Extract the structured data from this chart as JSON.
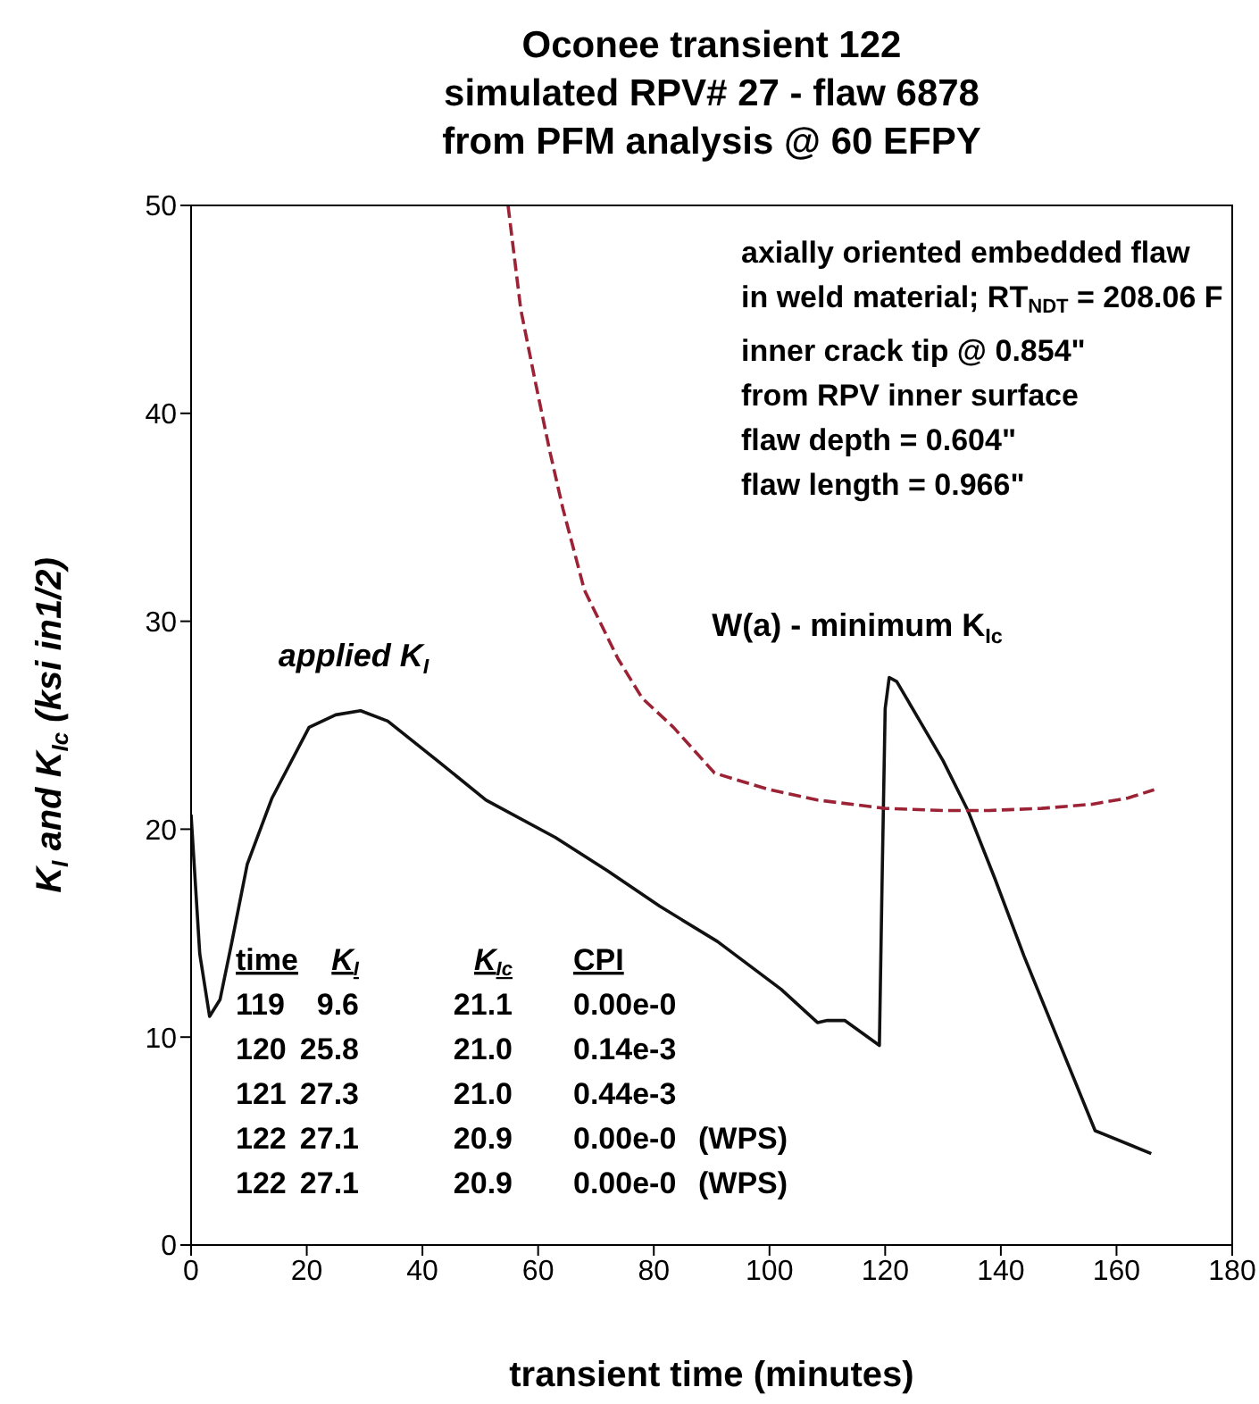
{
  "chart_data": {
    "type": "line",
    "title": "Oconee transient 122\nsimulated RPV# 27 - flaw 6878\nfrom PFM analysis @ 60 EFPY",
    "xlabel": "transient time (minutes)",
    "ylabel": "K$_{I}$ and K$_{Ic}$ (ksi in1/2)",
    "xlim": [
      0,
      180
    ],
    "xticks": [
      0,
      20,
      40,
      60,
      80,
      100,
      120,
      140,
      160,
      180
    ],
    "ylim": [
      0,
      50
    ],
    "yticks": [
      0,
      10,
      20,
      30,
      40,
      50
    ],
    "series": [
      {
        "color": "#111111",
        "line_style": "solid",
        "x": [
          0,
          1.5,
          3.2,
          5,
          7,
          9.7,
          14,
          20.4,
          25,
          29.3,
          34,
          43,
          51,
          63,
          72,
          81,
          91,
          102,
          108.3,
          110,
          113,
          116,
          119,
          119.5,
          120,
          120.7,
          122,
          126,
          130,
          134.3,
          139,
          144,
          150,
          156.3,
          166
        ],
        "values": [
          20.7,
          14,
          11,
          11.8,
          14.5,
          18.3,
          21.5,
          24.9,
          25.5,
          25.7,
          25.2,
          23.2,
          21.4,
          19.6,
          18,
          16.3,
          14.6,
          12.3,
          10.7,
          10.8,
          10.8,
          10.2,
          9.6,
          18,
          25.8,
          27.3,
          27.1,
          25.2,
          23.3,
          20.9,
          17.6,
          13.9,
          9.8,
          5.5,
          4.4
        ]
      },
      {
        "color": "#9b2335",
        "line_style": "dashed",
        "x": [
          54.8,
          57,
          59.6,
          62,
          64.3,
          68,
          73.8,
          78,
          83.4,
          90.5,
          100,
          108.3,
          120,
          130,
          138,
          147,
          155.8,
          162,
          166.5
        ],
        "values": [
          50,
          45,
          41.4,
          38.2,
          35.4,
          31.5,
          28.2,
          26.3,
          24.9,
          22.7,
          21.9,
          21.4,
          21.0,
          20.9,
          20.9,
          21.0,
          21.2,
          21.5,
          21.9
        ]
      }
    ],
    "annotations": [
      "applied K$_{I}$",
      "W(a) - minimum K$_{Ic}$",
      "axially oriented embedded flaw",
      "in weld material; RT$_{NDT}$ = 208.06 F",
      "inner crack tip @ 0.854\"",
      "from RPV inner surface",
      "flaw depth  = 0.604\"",
      "flaw length = 0.966\"",
      "time    K$_{I}$    K$_{Ic}$    CPI",
      "119    9.6    21.1    0.00e-0",
      "120    25.8    21.0    0.14e-3",
      "121    27.3    21.0    0.44e-3",
      "122    27.1    20.9    0.00e-0    (WPS)",
      "122    27.1    20.9    0.00e-0    (WPS)"
    ]
  }
}
